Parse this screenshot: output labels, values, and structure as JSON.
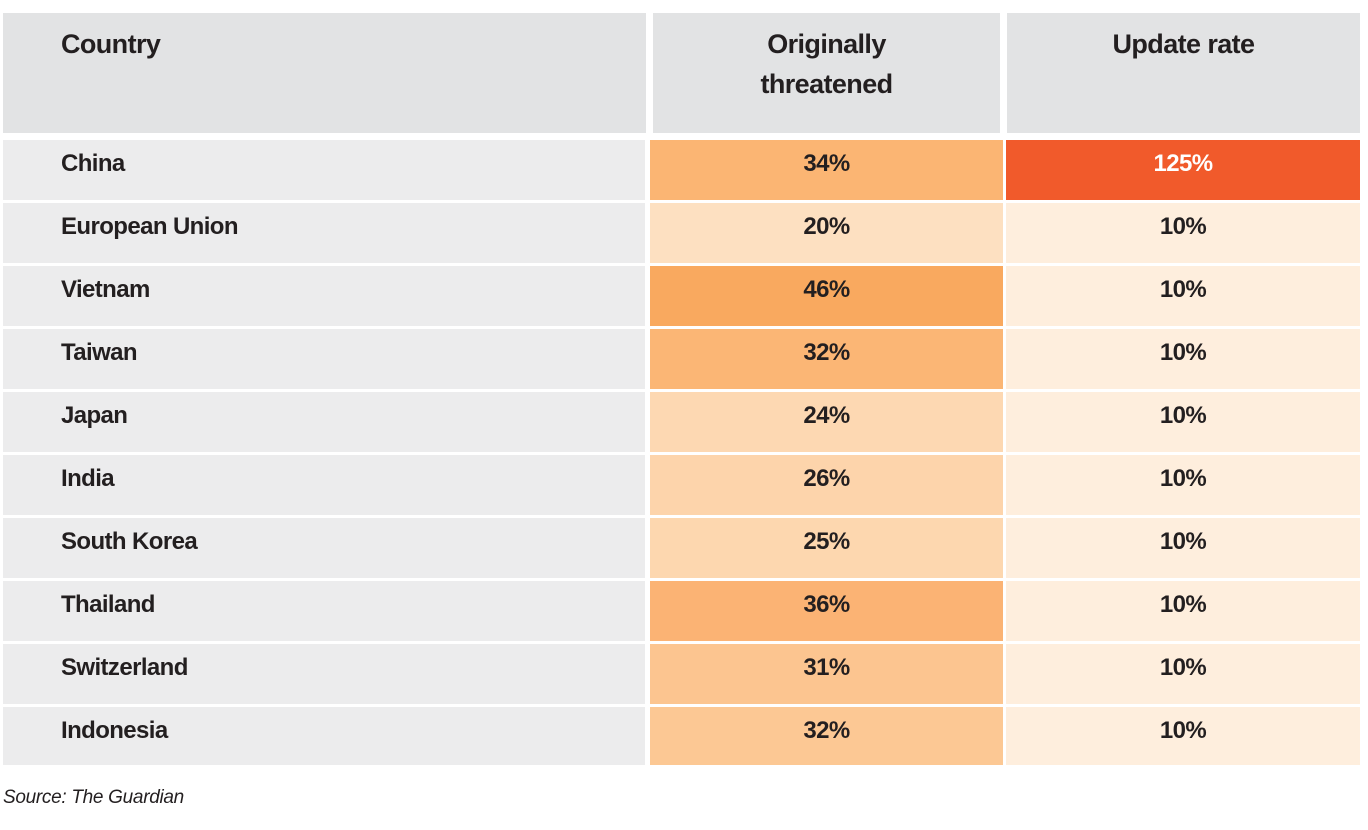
{
  "chart_data": {
    "type": "table",
    "columns": [
      "Country",
      "Originally threatened",
      "Update rate"
    ],
    "rows": [
      {
        "country": "China",
        "originally_threatened": "34%",
        "update_rate": "125%"
      },
      {
        "country": "European Union",
        "originally_threatened": "20%",
        "update_rate": "10%"
      },
      {
        "country": "Vietnam",
        "originally_threatened": "46%",
        "update_rate": "10%"
      },
      {
        "country": "Taiwan",
        "originally_threatened": "32%",
        "update_rate": "10%"
      },
      {
        "country": "Japan",
        "originally_threatened": "24%",
        "update_rate": "10%"
      },
      {
        "country": "India",
        "originally_threatened": "26%",
        "update_rate": "10%"
      },
      {
        "country": "South Korea",
        "originally_threatened": "25%",
        "update_rate": "10%"
      },
      {
        "country": "Thailand",
        "originally_threatened": "36%",
        "update_rate": "10%"
      },
      {
        "country": "Switzerland",
        "originally_threatened": "31%",
        "update_rate": "10%"
      },
      {
        "country": "Indonesia",
        "originally_threatened": "32%",
        "update_rate": "10%"
      }
    ],
    "cell_colors": {
      "originally_threatened": [
        "#fbb573",
        "#fde0c1",
        "#f9a95f",
        "#fbb675",
        "#fdd8b2",
        "#fdd4ab",
        "#fdd7af",
        "#fbb374",
        "#fcc590",
        "#fcc894"
      ],
      "update_rate": [
        "#f15a2b",
        "#feeedd",
        "#feeedd",
        "#feeedd",
        "#feeedd",
        "#feeedd",
        "#feeedd",
        "#feeedd",
        "#feeedd",
        "#feeedd"
      ]
    },
    "header_color": "#e2e3e4",
    "label_column_color": "#ececed"
  },
  "source": "Source: The Guardian"
}
